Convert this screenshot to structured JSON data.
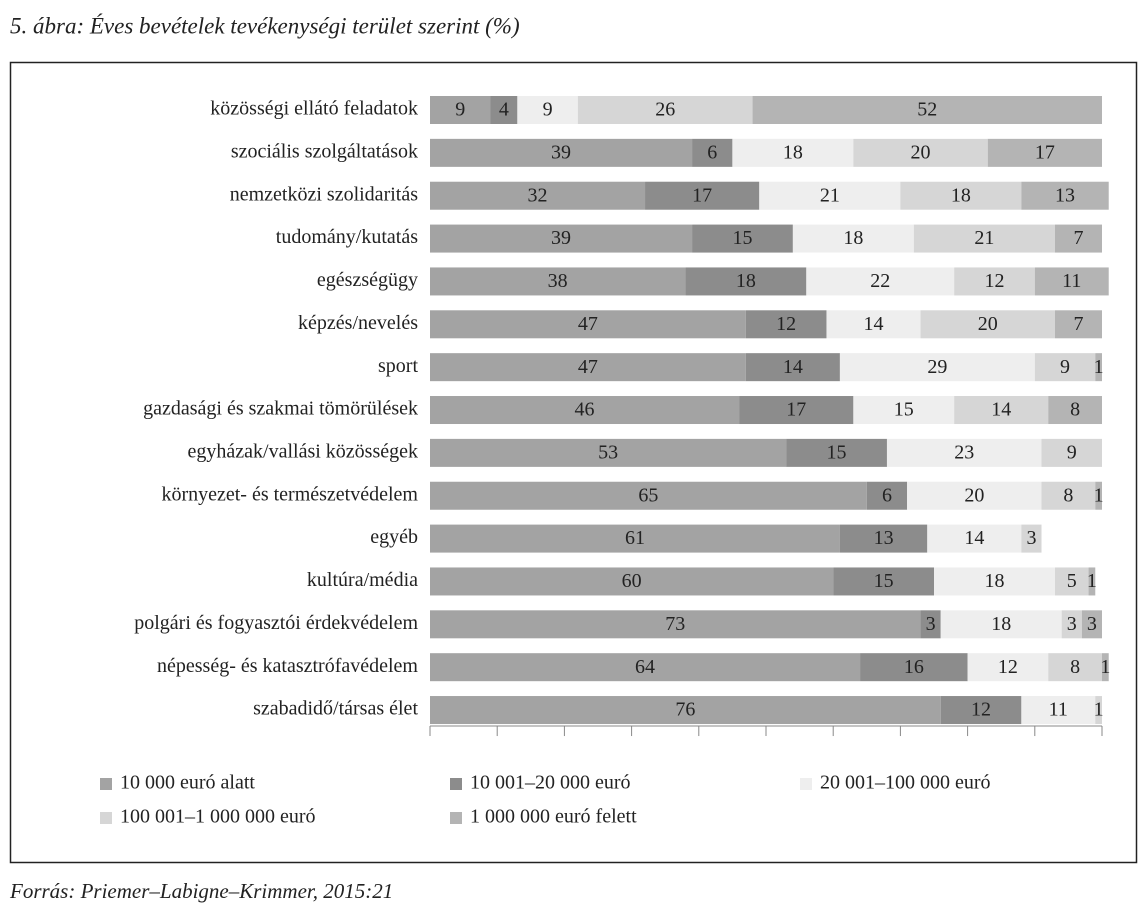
{
  "chart_data": {
    "type": "stacked-bar-horizontal",
    "title": "5. ábra: Éves bevételek tevékenységi terület szerint (%)",
    "source": "Forrás: Priemer–Labigne–Krimmer, 2015:21",
    "categories": [
      "közösségi ellátó feladatok",
      "szociális szolgáltatások",
      "nemzetközi szolidaritás",
      "tudomány/kutatás",
      "egészségügy",
      "képzés/nevelés",
      "sport",
      "gazdasági és szakmai tömörülések",
      "egyházak/vallási közösségek",
      "környezet- és természetvédelem",
      "egyéb",
      "kultúra/média",
      "polgári és fogyasztói érdekvédelem",
      "népesség- és katasztrófavédelem",
      "szabadidő/társas élet"
    ],
    "series": [
      {
        "name": "10 000 euró alatt",
        "color": "#a3a3a3",
        "values": [
          9,
          39,
          32,
          39,
          38,
          47,
          47,
          46,
          53,
          65,
          61,
          60,
          73,
          64,
          76
        ]
      },
      {
        "name": "10 001–20 000 euró",
        "color": "#8c8c8c",
        "values": [
          4,
          6,
          17,
          15,
          18,
          12,
          14,
          17,
          15,
          6,
          13,
          15,
          3,
          16,
          12
        ]
      },
      {
        "name": "20 001–100 000 euró",
        "color": "#eeeeee",
        "values": [
          9,
          18,
          21,
          18,
          22,
          14,
          29,
          15,
          23,
          20,
          14,
          18,
          18,
          12,
          11
        ]
      },
      {
        "name": "100 001–1 000 000 euró",
        "color": "#d6d6d6",
        "values": [
          26,
          20,
          18,
          21,
          12,
          20,
          9,
          14,
          9,
          8,
          3,
          5,
          3,
          8,
          1
        ]
      },
      {
        "name": "1 000 000 euró felett",
        "color": "#b4b4b4",
        "values": [
          52,
          17,
          13,
          7,
          11,
          7,
          1,
          8,
          null,
          1,
          null,
          1,
          3,
          1,
          null
        ]
      }
    ],
    "xlim": [
      0,
      100
    ],
    "xticks": [
      0,
      10,
      20,
      30,
      40,
      50,
      60,
      70,
      80,
      90,
      100
    ]
  }
}
